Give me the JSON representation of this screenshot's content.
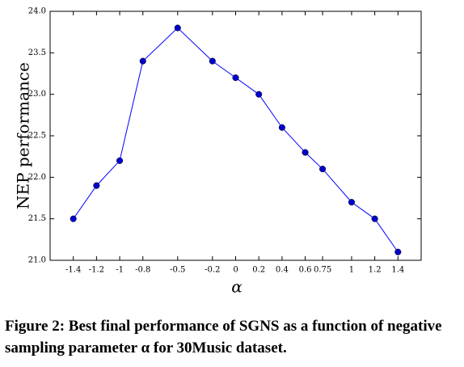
{
  "chart_data": {
    "type": "line",
    "x": [
      -1.4,
      -1.2,
      -1,
      -0.8,
      -0.5,
      -0.2,
      0,
      0.2,
      0.4,
      0.6,
      0.75,
      1,
      1.2,
      1.4
    ],
    "series": [
      {
        "color": "#0000ff",
        "values": [
          21.5,
          21.9,
          22.2,
          23.4,
          23.8,
          23.4,
          23.2,
          23.0,
          22.6,
          22.3,
          22.1,
          21.7,
          21.5,
          21.1
        ]
      }
    ],
    "xlim": [
      -1.6,
      1.6
    ],
    "xticks": [
      -1.4,
      -1.2,
      -1,
      -0.8,
      -0.5,
      -0.2,
      0,
      0.2,
      0.4,
      0.6,
      0.75,
      1,
      1.2,
      1.4
    ],
    "ylim": [
      21,
      24
    ],
    "yticks": [
      {
        "value": 21,
        "label": "21.0"
      },
      21.5,
      {
        "value": 22,
        "label": "22.0"
      },
      22.5,
      {
        "value": 23,
        "label": "23.0"
      },
      23.5,
      {
        "value": 24,
        "label": "24.0"
      }
    ],
    "xlabel": "α",
    "ylabel": "NEP performance",
    "caption": "Figure 2: Best final performance of SGNS as a function of negative sampling parameter α for 30Music dataset."
  }
}
